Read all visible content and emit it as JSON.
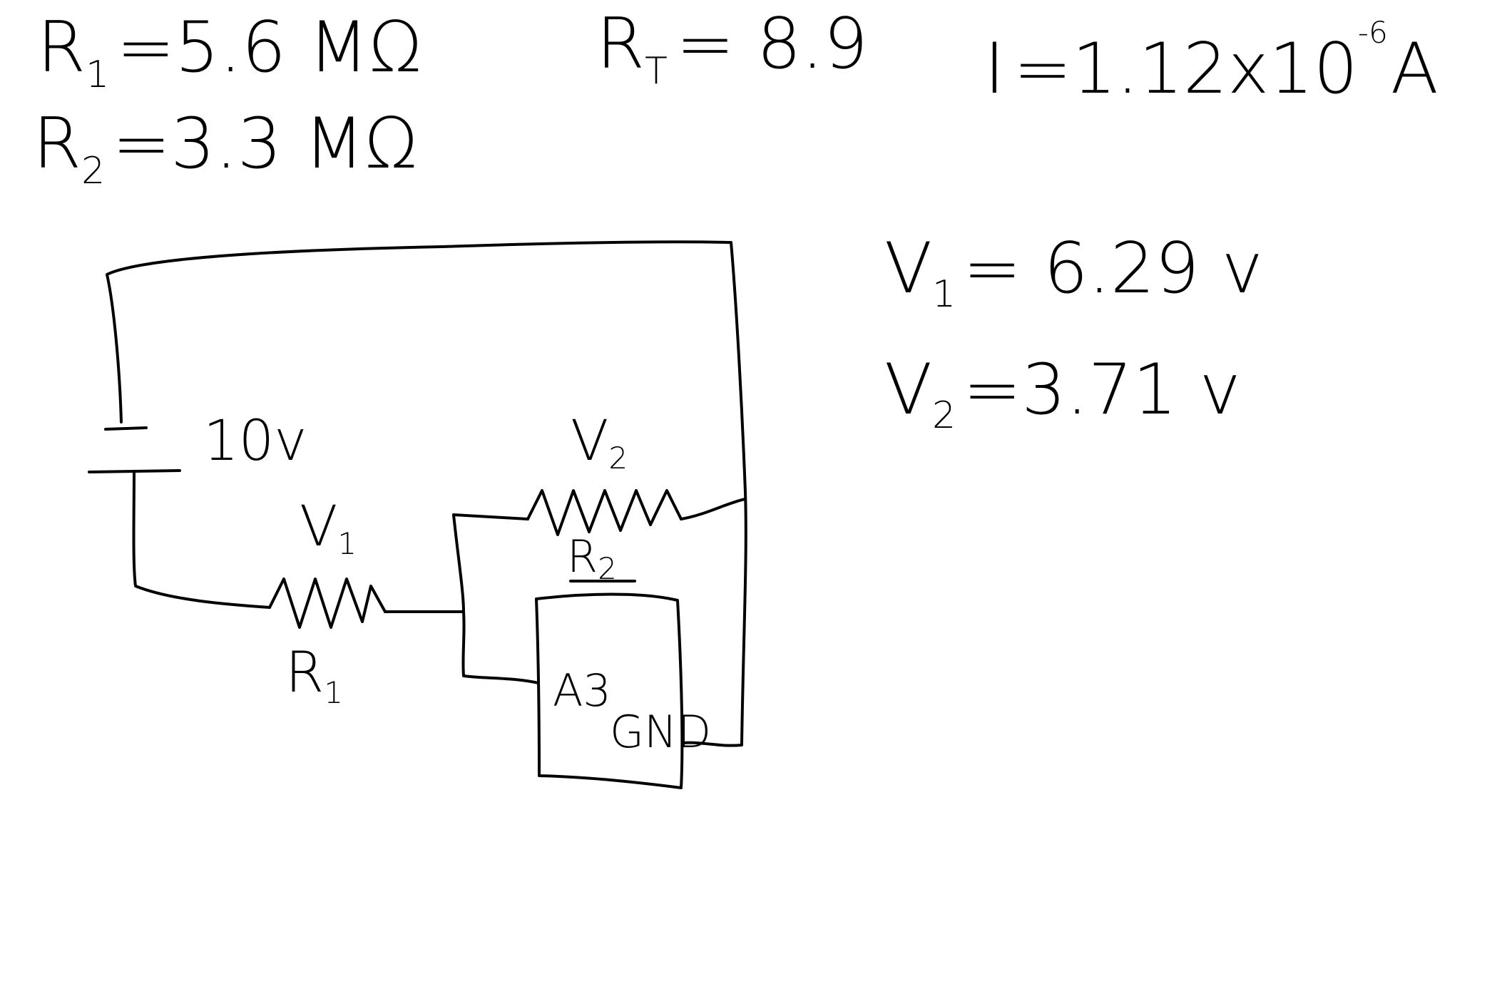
{
  "given": {
    "r1": {
      "base": "R",
      "sub": "1",
      "rest": "=5.6 MΩ"
    },
    "r2": {
      "base": "R",
      "sub": "2",
      "rest": "=3.3 MΩ"
    },
    "rt": {
      "base": "R",
      "sub": "T",
      "rest": "= 8.9"
    },
    "current": {
      "base": "I",
      "rest": "=1.12x10",
      "exp": "-6",
      "unit": "A"
    }
  },
  "results": {
    "v1": {
      "base": "V",
      "sub": "1",
      "rest": "= 6.29 v"
    },
    "v2": {
      "base": "V",
      "sub": "2",
      "rest": "=3.71 v"
    }
  },
  "circuit": {
    "source_label": "10v",
    "r1_voltage": {
      "base": "V",
      "sub": "1"
    },
    "r1_name": {
      "base": "R",
      "sub": "1"
    },
    "r2_voltage": {
      "base": "V",
      "sub": "2"
    },
    "r2_name": {
      "base": "R",
      "sub": "2"
    },
    "probe_pin": "A3",
    "probe_ground": "GND"
  },
  "colors": {
    "ink": "#000000",
    "background": "#ffffff"
  }
}
